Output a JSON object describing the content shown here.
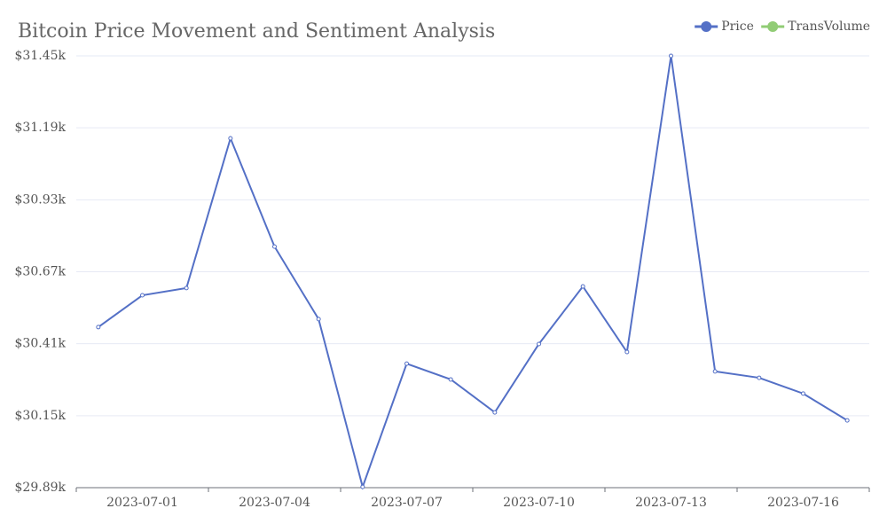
{
  "chart_data": {
    "type": "line",
    "title": "Bitcoin Price Movement and Sentiment Analysis",
    "categories": [
      null,
      "2023-07-01",
      null,
      null,
      "2023-07-04",
      null,
      null,
      "2023-07-07",
      null,
      null,
      "2023-07-10",
      null,
      null,
      "2023-07-13",
      null,
      null,
      "2023-07-16",
      null
    ],
    "series": [
      {
        "name": "Price",
        "color": "#5470c6",
        "values": [
          30470,
          30585,
          30611,
          31152,
          30761,
          30499,
          29893,
          30338,
          30281,
          30162,
          30409,
          30617,
          30380,
          31450,
          30310,
          30287,
          30230,
          30133
        ]
      },
      {
        "name": "TransVolume",
        "color": "#91cc75",
        "values": [
          null,
          null,
          null,
          null,
          null,
          null,
          null,
          null,
          null,
          null,
          null,
          null,
          null,
          null,
          null,
          null,
          null,
          null
        ]
      }
    ],
    "ylim": [
      29890,
      31450
    ],
    "yticks": [
      {
        "value": 29890,
        "label": "$29.89k"
      },
      {
        "value": 30150,
        "label": "$30.15k"
      },
      {
        "value": 30410,
        "label": "$30.41k"
      },
      {
        "value": 30670,
        "label": "$30.67k"
      },
      {
        "value": 30930,
        "label": "$30.93k"
      },
      {
        "value": 31190,
        "label": "$31.19k"
      },
      {
        "value": 31450,
        "label": "$31.45k"
      }
    ],
    "grid": true,
    "legend": "top-right"
  }
}
